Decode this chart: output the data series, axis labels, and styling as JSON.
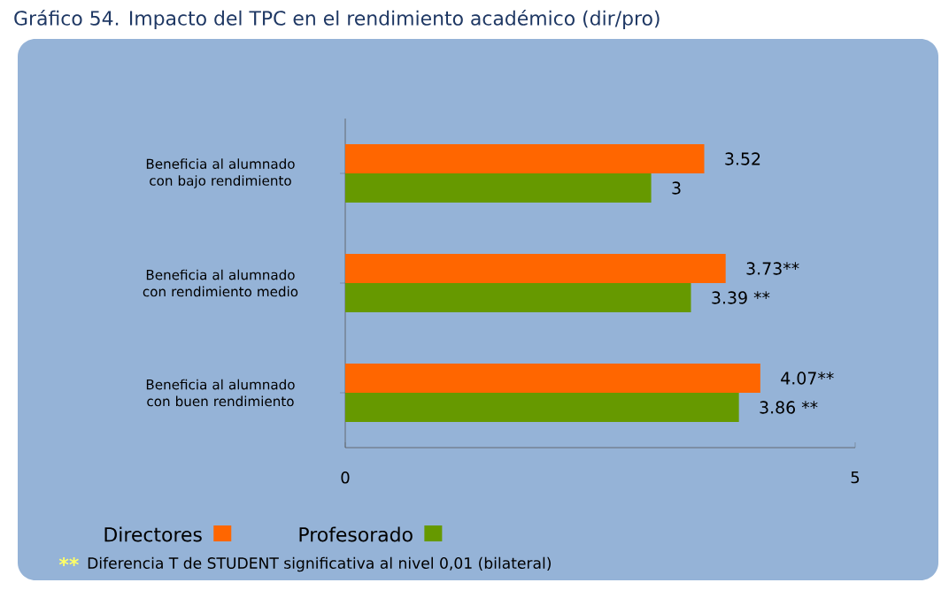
{
  "chart_data": {
    "type": "bar",
    "orientation": "horizontal",
    "title": "Gráfico 54. Impacto del TPC en el rendimiento académico (dir/pro)",
    "categories": [
      "Beneficia al alumnado con bajo rendimiento",
      "Beneficia al alumnado con rendimiento medio",
      "Beneficia al alumnado con buen rendimiento"
    ],
    "series": [
      {
        "name": "Directores",
        "color": "#ff6600",
        "values": [
          3.52,
          3.73,
          4.07
        ],
        "value_labels": [
          "3.52",
          "3.73**",
          "4.07**"
        ]
      },
      {
        "name": "Profesorado",
        "color": "#669900",
        "values": [
          3,
          3.39,
          3.86
        ],
        "value_labels": [
          "3",
          "3.39 **",
          "3.86 **"
        ]
      }
    ],
    "xlim": [
      0,
      5
    ],
    "xticks": [
      0,
      5
    ],
    "legend": "bottom",
    "annotations": [
      "**",
      "Diferencia T de STUDENT significativa al nivel  0,01 (bilateral)"
    ]
  }
}
